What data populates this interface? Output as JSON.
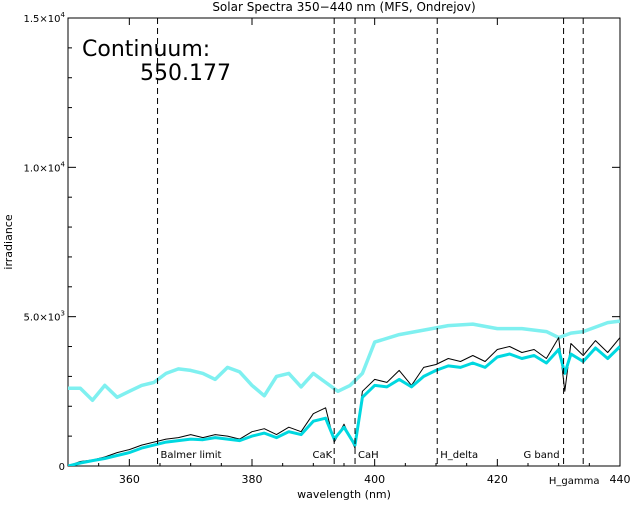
{
  "chart_data": {
    "type": "line",
    "title": "Solar Spectra 350−440 nm (MFS, Ondrejov)",
    "xlabel": "wavelength (nm)",
    "ylabel": "irradiance",
    "xlim": [
      350,
      440
    ],
    "ylim": [
      0,
      15000
    ],
    "x_ticks": [
      360,
      380,
      400,
      420,
      440
    ],
    "x_tick_labels": [
      "360",
      "380",
      "400",
      "420",
      "440"
    ],
    "y_ticks": [
      0,
      5000,
      10000,
      15000
    ],
    "y_tick_labels": [
      {
        "mantissa": "0",
        "power": ""
      },
      {
        "mantissa": "5.0×10",
        "power": "3"
      },
      {
        "mantissa": "1.0×10",
        "power": "4"
      },
      {
        "mantissa": "1.5×10",
        "power": "4"
      }
    ],
    "annotation": {
      "label": "Continuum:",
      "value": "550.177"
    },
    "spectral_lines": [
      {
        "x": 364.6,
        "label": "Balmer limit"
      },
      {
        "x": 393.4,
        "label": "CaK"
      },
      {
        "x": 396.8,
        "label": "CaH"
      },
      {
        "x": 410.2,
        "label": "H_delta"
      },
      {
        "x": 430.8,
        "label": "G band"
      },
      {
        "x": 434.0,
        "label": "H_gamma"
      }
    ],
    "series": [
      {
        "color": "#000000",
        "x": [
          350,
          352,
          354,
          356,
          358,
          360,
          362,
          364,
          366,
          368,
          370,
          372,
          374,
          376,
          378,
          380,
          382,
          384,
          386,
          388,
          390,
          392,
          393.4,
          395,
          396.8,
          398,
          400,
          402,
          404,
          406,
          408,
          410,
          412,
          414,
          416,
          418,
          420,
          422,
          424,
          426,
          428,
          430,
          431,
          432,
          434,
          436,
          438,
          440
        ],
        "values": [
          0,
          150,
          200,
          300,
          450,
          550,
          700,
          800,
          900,
          950,
          1050,
          950,
          1050,
          1000,
          900,
          1150,
          1250,
          1050,
          1300,
          1150,
          1750,
          1950,
          800,
          1400,
          600,
          2500,
          2900,
          2800,
          3200,
          2700,
          3300,
          3400,
          3600,
          3500,
          3700,
          3500,
          3900,
          4000,
          3800,
          3900,
          3600,
          4300,
          2500,
          4100,
          3700,
          4200,
          3800,
          4300
        ]
      },
      {
        "color": "#00d8e0",
        "x": [
          350,
          352,
          354,
          356,
          358,
          360,
          362,
          364,
          366,
          368,
          370,
          372,
          374,
          376,
          378,
          380,
          382,
          384,
          386,
          388,
          390,
          392,
          393.4,
          395,
          396.8,
          398,
          400,
          402,
          404,
          406,
          408,
          410,
          412,
          414,
          416,
          418,
          420,
          422,
          424,
          426,
          428,
          430,
          431,
          432,
          434,
          436,
          438,
          440
        ],
        "values": [
          0,
          100,
          180,
          250,
          350,
          450,
          600,
          700,
          800,
          850,
          900,
          880,
          950,
          900,
          850,
          1000,
          1100,
          950,
          1150,
          1050,
          1500,
          1600,
          900,
          1300,
          700,
          2300,
          2700,
          2650,
          2900,
          2650,
          3000,
          3200,
          3350,
          3300,
          3450,
          3300,
          3650,
          3750,
          3600,
          3700,
          3450,
          3900,
          3100,
          3750,
          3500,
          3950,
          3600,
          4000
        ]
      },
      {
        "color": "#7ff0f0",
        "x": [
          350,
          352,
          354,
          356,
          358,
          360,
          362,
          364,
          366,
          368,
          370,
          372,
          374,
          376,
          378,
          380,
          382,
          384,
          386,
          388,
          390,
          392,
          394,
          396,
          398,
          400,
          404,
          408,
          412,
          416,
          420,
          424,
          428,
          430,
          432,
          434,
          436,
          438,
          440
        ],
        "values": [
          2600,
          2600,
          2200,
          2700,
          2300,
          2500,
          2700,
          2800,
          3100,
          3250,
          3200,
          3100,
          2900,
          3300,
          3150,
          2700,
          2350,
          3000,
          3100,
          2650,
          3100,
          2800,
          2500,
          2700,
          3100,
          4150,
          4400,
          4550,
          4700,
          4750,
          4600,
          4600,
          4500,
          4300,
          4450,
          4500,
          4650,
          4800,
          4850
        ]
      }
    ]
  }
}
